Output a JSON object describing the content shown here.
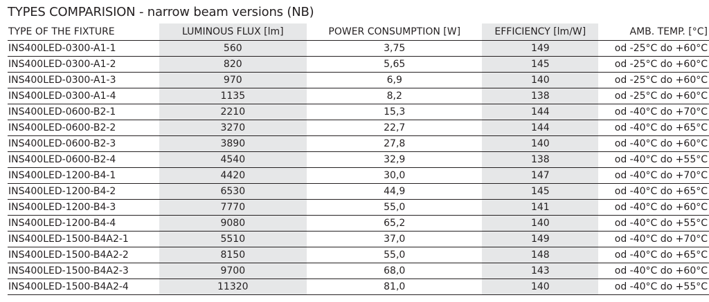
{
  "title": "TYPES COMPARISION - narrow beam versions (NB)",
  "headers": [
    "TYPE OF THE FIXTURE",
    "LUMINOUS FLUX [lm]",
    "POWER CONSUMPTION [W]",
    "EFFICIENCY [lm/W]",
    "AMB. TEMP. [°C]"
  ],
  "rows": [
    [
      "INS400LED-0300-A1-1",
      "560",
      "3,75",
      "149",
      "od -25°C do +60°C"
    ],
    [
      "INS400LED-0300-A1-2",
      "820",
      "5,65",
      "145",
      "od -25°C do +60°C"
    ],
    [
      "INS400LED-0300-A1-3",
      "970",
      "6,9",
      "140",
      "od -25°C do +60°C"
    ],
    [
      "INS400LED-0300-A1-4",
      "1135",
      "8,2",
      "138",
      "od -25°C do +60°C"
    ],
    [
      "INS400LED-0600-B2-1",
      "2210",
      "15,3",
      "144",
      "od -40°C do +70°C"
    ],
    [
      "INS400LED-0600-B2-2",
      "3270",
      "22,7",
      "144",
      "od -40°C do +65°C"
    ],
    [
      "INS400LED-0600-B2-3",
      "3890",
      "27,8",
      "140",
      "od -40°C do +60°C"
    ],
    [
      "INS400LED-0600-B2-4",
      "4540",
      "32,9",
      "138",
      "od -40°C do +55°C"
    ],
    [
      "INS400LED-1200-B4-1",
      "4420",
      "30,0",
      "147",
      "od -40°C do +70°C"
    ],
    [
      "INS400LED-1200-B4-2",
      "6530",
      "44,9",
      "145",
      "od -40°C do +65°C"
    ],
    [
      "INS400LED-1200-B4-3",
      "7770",
      "55,0",
      "141",
      "od -40°C do +60°C"
    ],
    [
      "INS400LED-1200-B4-4",
      "9080",
      "65,2",
      "140",
      "od -40°C do +55°C"
    ],
    [
      "INS400LED-1500-B4A2-1",
      "5510",
      "37,0",
      "149",
      "od -40°C do +70°C"
    ],
    [
      "INS400LED-1500-B4A2-2",
      "8150",
      "55,0",
      "148",
      "od -40°C do +65°C"
    ],
    [
      "INS400LED-1500-B4A2-3",
      "9700",
      "68,0",
      "143",
      "od -40°C do +60°C"
    ],
    [
      "INS400LED-1500-B4A2-4",
      "11320",
      "81,0",
      "140",
      "od -40°C do +55°C"
    ]
  ],
  "colors": {
    "text": "#231f20",
    "shade": "#e6e7e8"
  }
}
